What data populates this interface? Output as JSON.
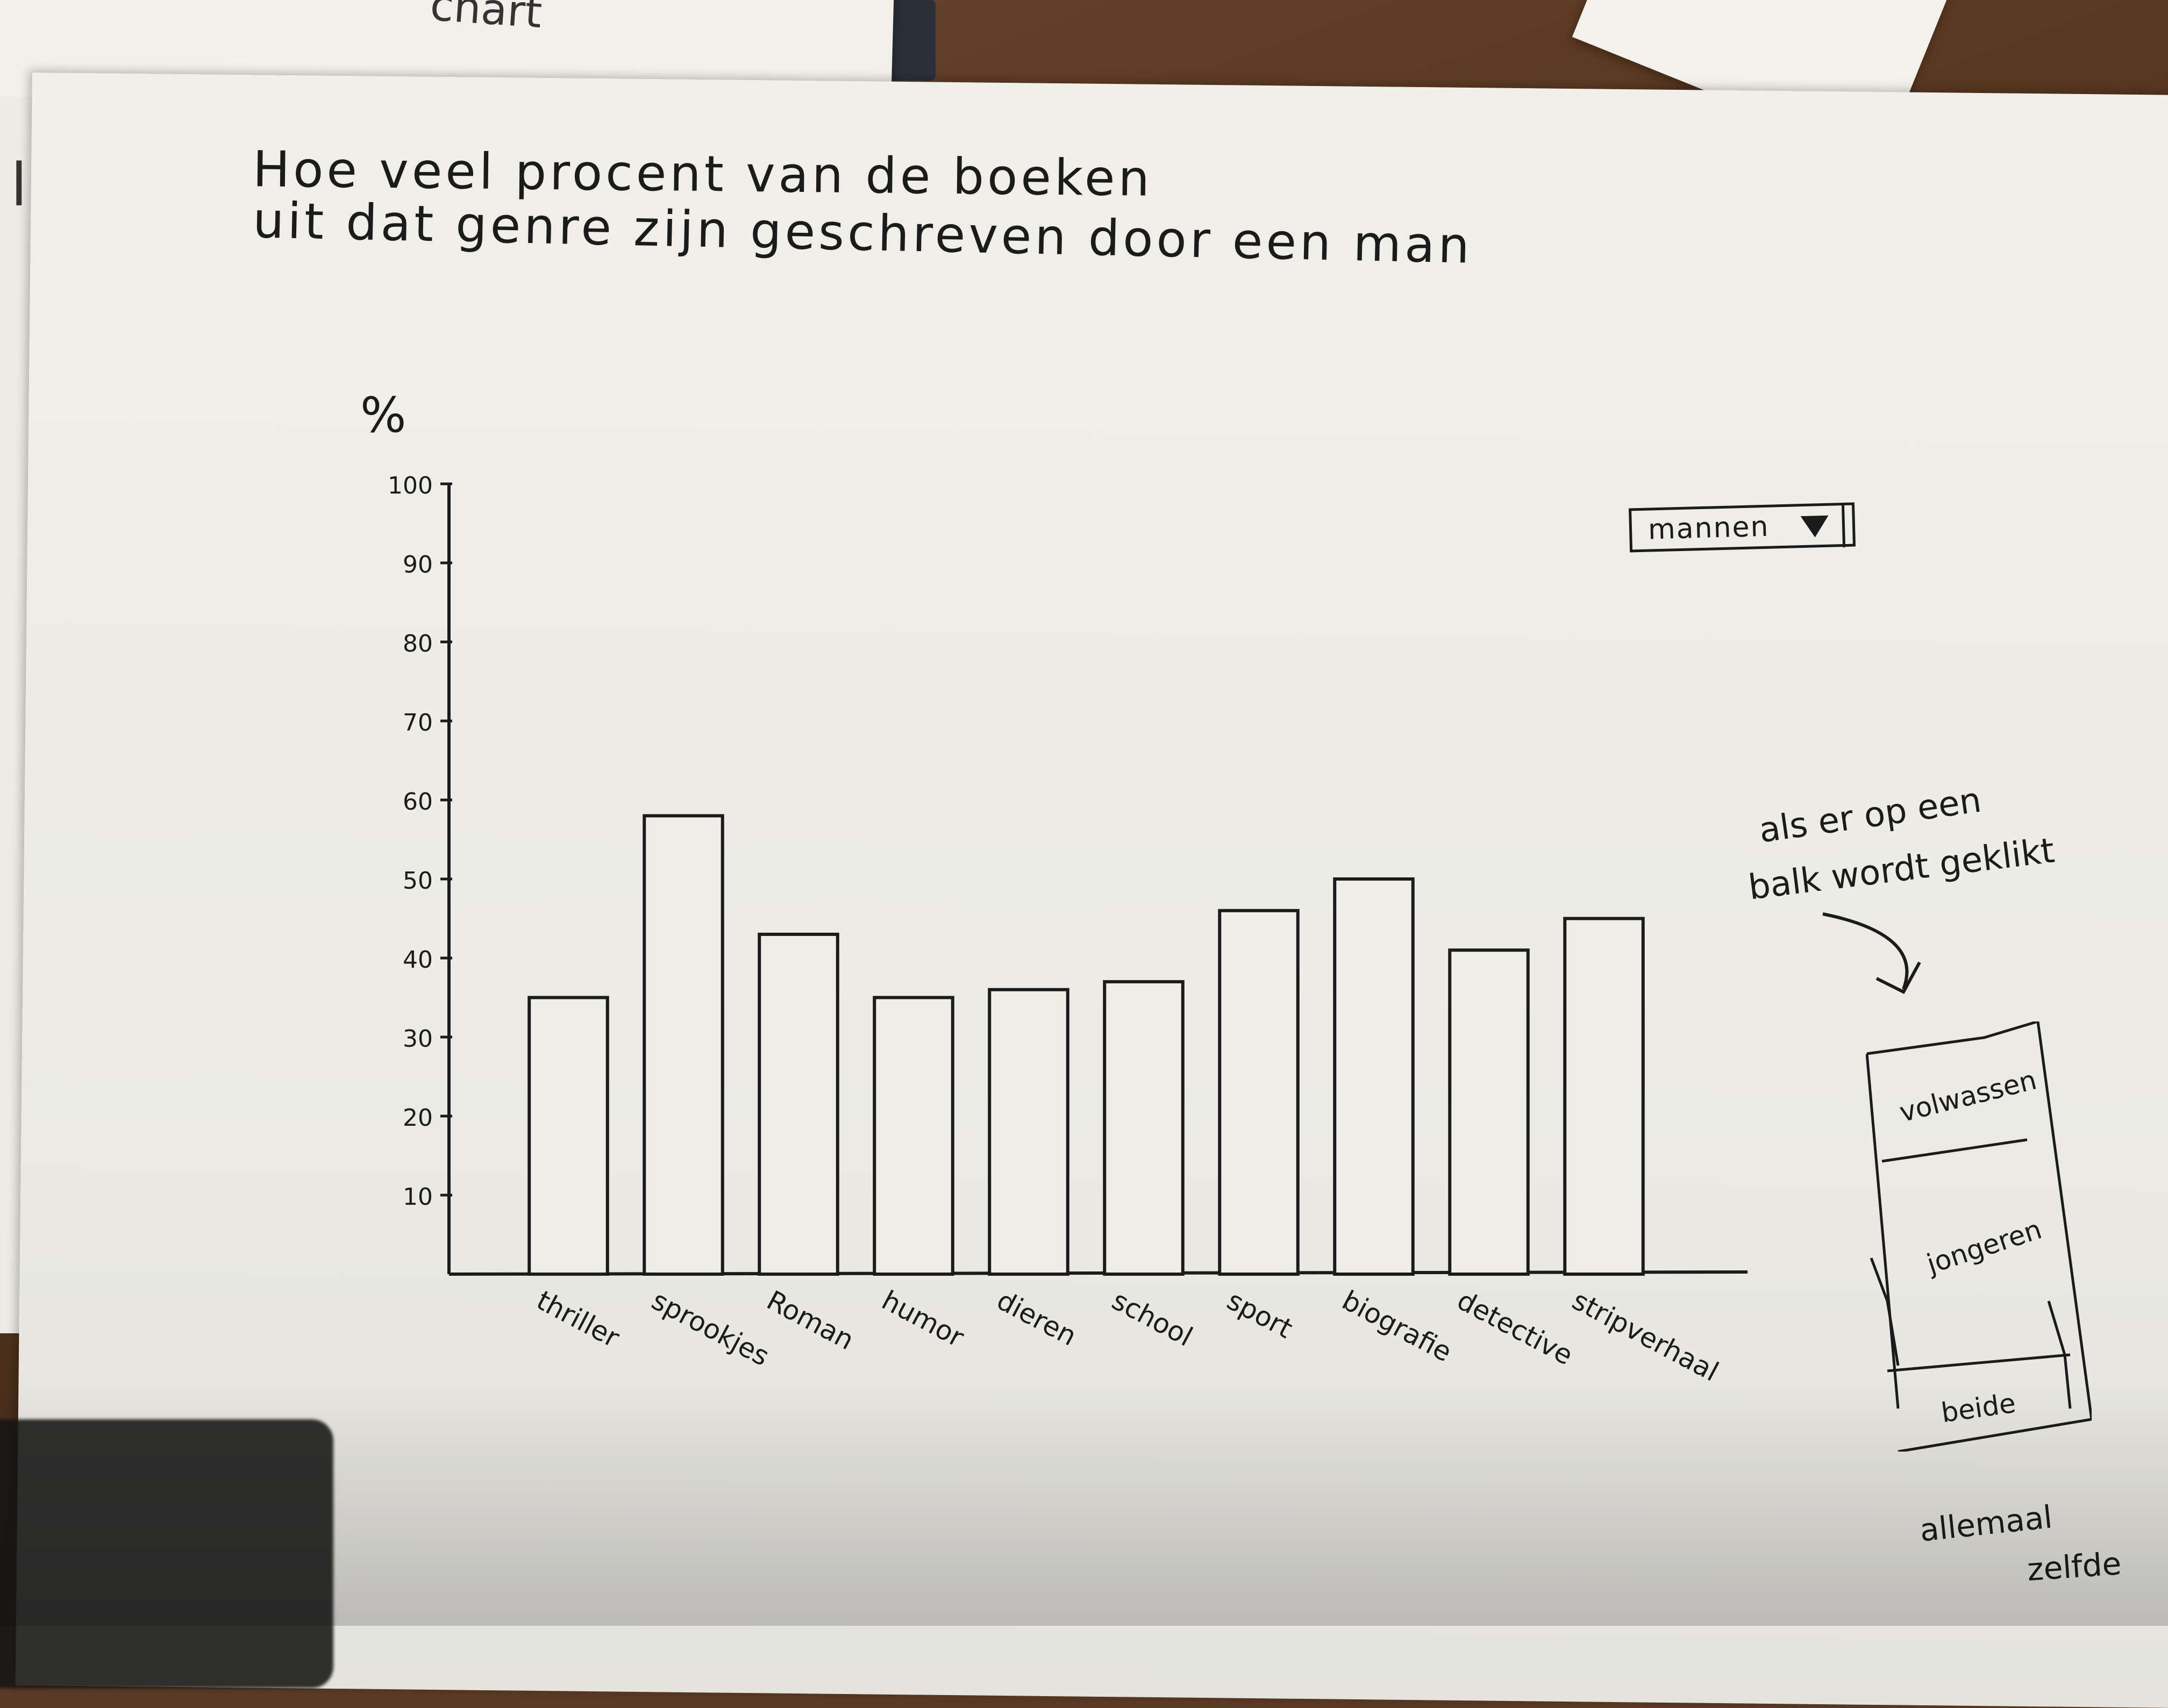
{
  "background_note": "",
  "top_fragment": "chart",
  "title_lines": [
    "Hoe veel procent van de boeken",
    "uit dat genre zijn geschreven door een man"
  ],
  "unit_label": "%",
  "dropdown": {
    "selected": "mannen"
  },
  "hover_note": [
    "als er op een",
    "balk wordt geklikt"
  ],
  "stack_segments": [
    "volwassen",
    "jongeren",
    "beide"
  ],
  "bottom_note": [
    "allemaal",
    "zelfde"
  ],
  "colors": {
    "ink": "#1b1b1b",
    "paper": "#efede7",
    "bar_fill": "#efede7"
  },
  "chart_data": {
    "type": "bar",
    "title": "Hoe veel procent van de boeken uit dat genre zijn geschreven door een man",
    "ylabel": "%",
    "xlabel": "",
    "ylim": [
      0,
      100
    ],
    "yticks": [
      10,
      20,
      30,
      40,
      50,
      60,
      70,
      80,
      90,
      100
    ],
    "ytick_labels": [
      "10",
      "20",
      "30",
      "40",
      "50",
      "60",
      "70",
      "80",
      "90",
      "100"
    ],
    "categories": [
      "thriller",
      "sprookjes",
      "Roman",
      "humor",
      "dieren",
      "school",
      "sport",
      "biografie",
      "detective",
      "stripverhaal"
    ],
    "values": [
      35,
      58,
      43,
      35,
      36,
      37,
      46,
      50,
      41,
      45
    ],
    "grid": false,
    "legend": "none"
  }
}
